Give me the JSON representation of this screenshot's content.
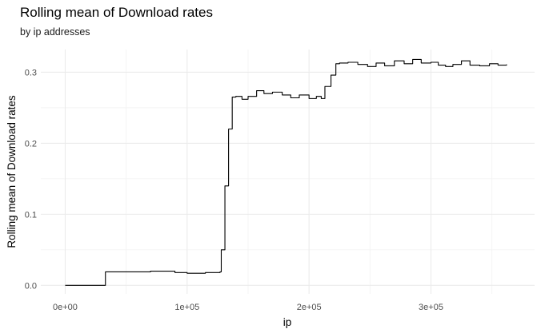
{
  "chart_data": {
    "type": "line",
    "title": "Rolling mean of Download rates",
    "subtitle": "by ip addresses",
    "xlabel": "ip",
    "ylabel": "Rolling mean of Download rates",
    "xlim": [
      -20000,
      385000
    ],
    "ylim": [
      -0.012,
      0.332
    ],
    "x_ticks": [
      0,
      100000,
      200000,
      300000
    ],
    "x_tick_labels": [
      "0e+00",
      "1e+05",
      "2e+05",
      "3e+05"
    ],
    "y_ticks": [
      0.0,
      0.1,
      0.2,
      0.3
    ],
    "y_tick_labels": [
      "0.0",
      "0.1",
      "0.2",
      "0.3"
    ],
    "grid": true,
    "legend": "none",
    "series": [
      {
        "color": "#000000",
        "x": [
          0,
          33000,
          33000,
          50000,
          70000,
          90000,
          100000,
          115000,
          127000,
          128000,
          131000,
          134000,
          137000,
          140000,
          145000,
          150000,
          157000,
          163000,
          170000,
          178000,
          185000,
          192000,
          200000,
          206000,
          210000,
          213000,
          218000,
          222000,
          225000,
          232000,
          240000,
          248000,
          255000,
          262000,
          270000,
          278000,
          285000,
          292000,
          300000,
          306000,
          312000,
          318000,
          325000,
          332000,
          340000,
          348000,
          355000,
          362000
        ],
        "y": [
          0.0,
          0.0,
          0.019,
          0.019,
          0.02,
          0.018,
          0.017,
          0.018,
          0.019,
          0.05,
          0.14,
          0.22,
          0.265,
          0.266,
          0.262,
          0.266,
          0.274,
          0.27,
          0.272,
          0.268,
          0.264,
          0.268,
          0.263,
          0.266,
          0.263,
          0.28,
          0.296,
          0.312,
          0.313,
          0.314,
          0.311,
          0.308,
          0.313,
          0.309,
          0.316,
          0.312,
          0.318,
          0.313,
          0.314,
          0.31,
          0.308,
          0.311,
          0.316,
          0.31,
          0.309,
          0.312,
          0.31,
          0.311
        ]
      }
    ]
  }
}
